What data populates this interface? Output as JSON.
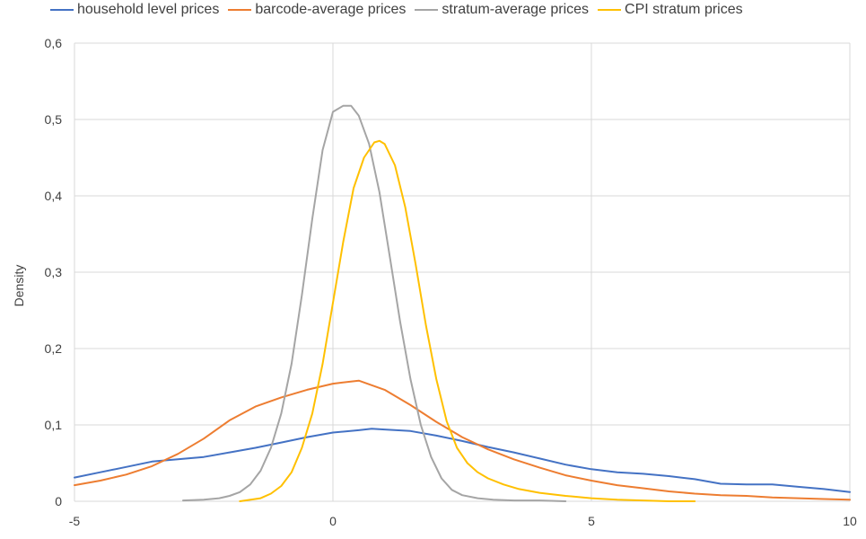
{
  "chart_data": {
    "type": "line",
    "title": "",
    "xlabel": "",
    "ylabel": "Density",
    "xlim": [
      -5,
      10
    ],
    "ylim": [
      0,
      0.6
    ],
    "x_ticks": [
      "-5",
      "0",
      "5",
      "10"
    ],
    "y_ticks": [
      "0",
      "0,1",
      "0,2",
      "0,3",
      "0,4",
      "0,5",
      "0,6"
    ],
    "grid": true,
    "legend_position": "top",
    "series": [
      {
        "name": "household level prices",
        "color": "#4472C4",
        "x": [
          -5,
          -4.5,
          -4,
          -3.5,
          -3,
          -2.5,
          -2,
          -1.5,
          -1,
          -0.5,
          0,
          0.5,
          0.75,
          1,
          1.5,
          2,
          2.5,
          3,
          3.5,
          4,
          4.5,
          5,
          5.5,
          6,
          6.5,
          7,
          7.5,
          8,
          8.5,
          9,
          9.5,
          10
        ],
        "y": [
          0.031,
          0.038,
          0.045,
          0.052,
          0.055,
          0.058,
          0.064,
          0.07,
          0.077,
          0.084,
          0.09,
          0.093,
          0.095,
          0.094,
          0.092,
          0.086,
          0.079,
          0.071,
          0.064,
          0.056,
          0.048,
          0.042,
          0.038,
          0.036,
          0.033,
          0.029,
          0.023,
          0.022,
          0.022,
          0.019,
          0.016,
          0.012
        ]
      },
      {
        "name": "barcode-average prices",
        "color": "#ED7D31",
        "x": [
          -5,
          -4.5,
          -4,
          -3.5,
          -3,
          -2.5,
          -2,
          -1.5,
          -1,
          -0.5,
          0,
          0.5,
          1,
          1.5,
          2,
          2.5,
          3,
          3.5,
          4,
          4.5,
          5,
          5.5,
          6,
          6.5,
          7,
          7.5,
          8,
          8.5,
          9,
          9.5,
          10
        ],
        "y": [
          0.021,
          0.027,
          0.035,
          0.046,
          0.062,
          0.082,
          0.106,
          0.124,
          0.136,
          0.146,
          0.154,
          0.158,
          0.146,
          0.126,
          0.104,
          0.084,
          0.068,
          0.055,
          0.044,
          0.034,
          0.027,
          0.021,
          0.017,
          0.013,
          0.01,
          0.008,
          0.007,
          0.005,
          0.004,
          0.003,
          0.002
        ]
      },
      {
        "name": "stratum-average prices",
        "color": "#A5A5A5",
        "x": [
          -2.9,
          -2.5,
          -2.2,
          -2.0,
          -1.8,
          -1.6,
          -1.4,
          -1.2,
          -1.0,
          -0.8,
          -0.6,
          -0.4,
          -0.2,
          0,
          0.2,
          0.35,
          0.5,
          0.7,
          0.9,
          1.1,
          1.3,
          1.5,
          1.7,
          1.9,
          2.1,
          2.3,
          2.5,
          2.8,
          3.1,
          3.5,
          4.0,
          4.5
        ],
        "y": [
          0.001,
          0.002,
          0.004,
          0.007,
          0.012,
          0.022,
          0.04,
          0.07,
          0.115,
          0.18,
          0.27,
          0.37,
          0.46,
          0.51,
          0.518,
          0.518,
          0.505,
          0.468,
          0.405,
          0.32,
          0.235,
          0.16,
          0.1,
          0.058,
          0.03,
          0.015,
          0.008,
          0.004,
          0.002,
          0.001,
          0.001,
          0.0
        ]
      },
      {
        "name": "CPI stratum prices",
        "color": "#FFC000",
        "x": [
          -1.8,
          -1.4,
          -1.2,
          -1.0,
          -0.8,
          -0.6,
          -0.4,
          -0.2,
          0,
          0.2,
          0.4,
          0.6,
          0.8,
          0.9,
          1.0,
          1.2,
          1.4,
          1.6,
          1.8,
          2.0,
          2.2,
          2.4,
          2.6,
          2.8,
          3.0,
          3.3,
          3.6,
          4.0,
          4.5,
          5.0,
          5.5,
          6.0,
          6.5,
          7.0
        ],
        "y": [
          0.0,
          0.004,
          0.01,
          0.02,
          0.038,
          0.07,
          0.115,
          0.18,
          0.26,
          0.34,
          0.41,
          0.45,
          0.47,
          0.472,
          0.468,
          0.44,
          0.385,
          0.31,
          0.23,
          0.16,
          0.105,
          0.07,
          0.05,
          0.038,
          0.03,
          0.022,
          0.016,
          0.011,
          0.007,
          0.004,
          0.002,
          0.001,
          0.0,
          0.0
        ]
      }
    ]
  }
}
